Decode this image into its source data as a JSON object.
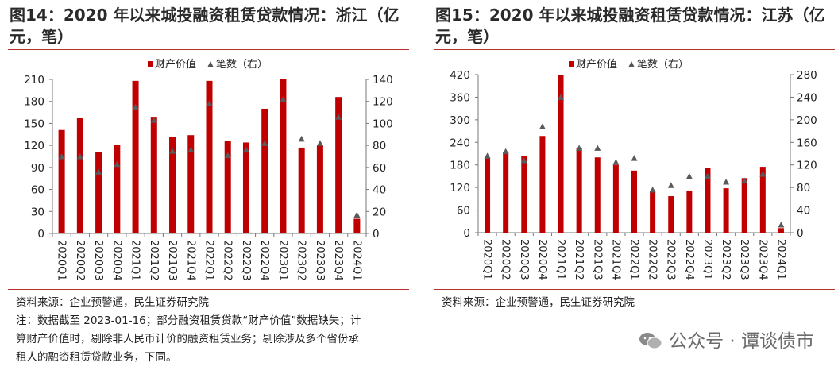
{
  "chart_data": [
    {
      "type": "bar+scatter",
      "title": "图14：2020 年以来城投融资租赁贷款情况：浙江（亿元，笔）",
      "legend": [
        "财产价值",
        "笔数（右）"
      ],
      "categories": [
        "2020Q1",
        "2020Q2",
        "2020Q3",
        "2020Q4",
        "2021Q1",
        "2021Q2",
        "2021Q3",
        "2021Q4",
        "2022Q1",
        "2022Q2",
        "2022Q3",
        "2022Q4",
        "2023Q1",
        "2023Q2",
        "2023Q3",
        "2023Q4",
        "2024Q1"
      ],
      "series": [
        {
          "name": "财产价值",
          "axis": "left",
          "values": [
            141,
            158,
            111,
            121,
            208,
            159,
            132,
            134,
            208,
            126,
            124,
            170,
            210,
            117,
            120,
            186,
            20
          ]
        },
        {
          "name": "笔数（右）",
          "axis": "right",
          "values": [
            70,
            70,
            56,
            63,
            115,
            103,
            75,
            76,
            118,
            71,
            76,
            82,
            122,
            86,
            82,
            106,
            17
          ]
        }
      ],
      "y_left": {
        "min": 0,
        "max": 210,
        "ticks": [
          0,
          30,
          60,
          90,
          120,
          150,
          180,
          210
        ]
      },
      "y_right": {
        "min": 0,
        "max": 140,
        "ticks": [
          0,
          20,
          40,
          60,
          80,
          100,
          120,
          140
        ]
      },
      "notes": [
        "资料来源：企业预警通，民生证券研究院",
        "注：数据截至 2023-01-16；部分融资租赁贷款“财产价值”数据缺失；计算财产价值时，剔除非人民币计价的融资租赁业务；剔除涉及多个省份承租人的融资租赁贷款业务，下同。"
      ]
    },
    {
      "type": "bar+scatter",
      "title": "图15：2020 年以来城投融资租赁贷款情况：江苏（亿元，笔）",
      "legend": [
        "财产价值",
        "笔数（右）"
      ],
      "categories": [
        "2020Q1",
        "2020Q2",
        "2020Q3",
        "2020Q4",
        "2021Q1",
        "2021Q2",
        "2021Q3",
        "2021Q4",
        "2022Q1",
        "2022Q2",
        "2022Q3",
        "2022Q4",
        "2023Q1",
        "2023Q2",
        "2023Q3",
        "2023Q4",
        "2024Q1"
      ],
      "series": [
        {
          "name": "财产价值",
          "axis": "left",
          "values": [
            200,
            215,
            203,
            257,
            420,
            225,
            200,
            180,
            165,
            112,
            97,
            112,
            172,
            118,
            145,
            175,
            12
          ]
        },
        {
          "name": "笔数（右）",
          "axis": "right",
          "values": [
            136,
            144,
            128,
            188,
            240,
            150,
            150,
            125,
            132,
            76,
            84,
            100,
            100,
            90,
            92,
            104,
            14
          ]
        }
      ],
      "y_left": {
        "min": 0,
        "max": 420,
        "ticks": [
          0,
          60,
          120,
          180,
          240,
          300,
          360,
          420
        ]
      },
      "y_right": {
        "min": 0,
        "max": 280,
        "ticks": [
          0,
          40,
          80,
          120,
          160,
          200,
          240,
          280
        ]
      },
      "notes": [
        "资料来源：企业预警通，民生证券研究院"
      ]
    }
  ],
  "panels": [
    {
      "title": "图14：2020 年以来城投融资租赁贷款情况：浙江（亿元，笔）"
    },
    {
      "title": "图15：2020 年以来城投融资租赁贷款情况：江苏（亿元，笔）"
    }
  ],
  "legend": {
    "bar": "财产价值",
    "marker": "笔数（右）"
  },
  "notes1": {
    "source": "资料来源：企业预警通，民生证券研究院",
    "line1": "注：数据截至 2023-01-16；部分融资租赁贷款“财产价值”数据缺失；计",
    "line2": "算财产价值时，剔除非人民币计价的融资租赁业务；剔除涉及多个省份承",
    "line3": "租人的融资租赁贷款业务，下同。"
  },
  "notes2": {
    "source": "资料来源：企业预警通，民生证券研究院"
  },
  "watermark": "公众号 · 谭谈债市",
  "colors": {
    "bar": "#c00000",
    "marker": "#5a5a5a",
    "rule": "#b7312f"
  }
}
